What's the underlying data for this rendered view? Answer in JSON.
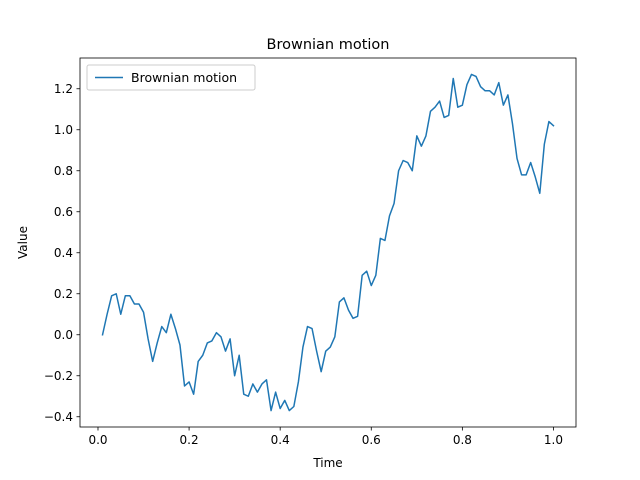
{
  "chart_data": {
    "type": "line",
    "title": "Brownian motion",
    "xlabel": "Time",
    "ylabel": "Value",
    "xlim": [
      -0.0395,
      1.0495
    ],
    "ylim": [
      -0.45,
      1.35
    ],
    "xticks": [
      0.0,
      0.2,
      0.4,
      0.6,
      0.8,
      1.0
    ],
    "xtick_labels": [
      "0.0",
      "0.2",
      "0.4",
      "0.6",
      "0.8",
      "1.0"
    ],
    "yticks": [
      -0.4,
      -0.2,
      0.0,
      0.2,
      0.4,
      0.6,
      0.8,
      1.0,
      1.2
    ],
    "ytick_labels": [
      "−0.4",
      "−0.2",
      "0.0",
      "0.2",
      "0.4",
      "0.6",
      "0.8",
      "1.0",
      "1.2"
    ],
    "grid": false,
    "legend_position": "upper-left",
    "colors": {
      "series": "#1f77b4"
    },
    "series": [
      {
        "name": "Brownian motion",
        "x": [
          0.01,
          0.02,
          0.03,
          0.04,
          0.05,
          0.06,
          0.07,
          0.08,
          0.09,
          0.1,
          0.11,
          0.12,
          0.13,
          0.14,
          0.15,
          0.16,
          0.17,
          0.18,
          0.19,
          0.2,
          0.21,
          0.22,
          0.23,
          0.24,
          0.25,
          0.26,
          0.27,
          0.28,
          0.29,
          0.3,
          0.31,
          0.32,
          0.33,
          0.34,
          0.35,
          0.36,
          0.37,
          0.38,
          0.39,
          0.4,
          0.41,
          0.42,
          0.43,
          0.44,
          0.45,
          0.46,
          0.47,
          0.48,
          0.49,
          0.5,
          0.51,
          0.52,
          0.53,
          0.54,
          0.55,
          0.56,
          0.57,
          0.58,
          0.59,
          0.6,
          0.61,
          0.62,
          0.63,
          0.64,
          0.65,
          0.66,
          0.67,
          0.68,
          0.69,
          0.7,
          0.71,
          0.72,
          0.73,
          0.74,
          0.75,
          0.76,
          0.77,
          0.78,
          0.79,
          0.8,
          0.81,
          0.82,
          0.83,
          0.84,
          0.85,
          0.86,
          0.87,
          0.88,
          0.89,
          0.9,
          0.91,
          0.92,
          0.93,
          0.94,
          0.95,
          0.96,
          0.97,
          0.98,
          0.99,
          1.0
        ],
        "y": [
          0.0,
          0.1,
          0.19,
          0.2,
          0.1,
          0.19,
          0.19,
          0.15,
          0.15,
          0.11,
          -0.02,
          -0.13,
          -0.04,
          0.04,
          0.01,
          0.1,
          0.03,
          -0.05,
          -0.25,
          -0.23,
          -0.29,
          -0.13,
          -0.1,
          -0.04,
          -0.03,
          0.01,
          -0.01,
          -0.08,
          -0.02,
          -0.2,
          -0.1,
          -0.29,
          -0.3,
          -0.24,
          -0.28,
          -0.24,
          -0.22,
          -0.37,
          -0.28,
          -0.36,
          -0.32,
          -0.37,
          -0.35,
          -0.23,
          -0.06,
          0.04,
          0.03,
          -0.08,
          -0.18,
          -0.08,
          -0.06,
          -0.01,
          0.16,
          0.18,
          0.12,
          0.08,
          0.09,
          0.29,
          0.31,
          0.24,
          0.29,
          0.47,
          0.46,
          0.58,
          0.64,
          0.8,
          0.85,
          0.84,
          0.8,
          0.97,
          0.92,
          0.97,
          1.09,
          1.11,
          1.14,
          1.06,
          1.07,
          1.25,
          1.11,
          1.12,
          1.22,
          1.27,
          1.26,
          1.21,
          1.19,
          1.19,
          1.17,
          1.23,
          1.12,
          1.17,
          1.03,
          0.86,
          0.78,
          0.78,
          0.84,
          0.77,
          0.69,
          0.93,
          1.04,
          1.02
        ]
      }
    ]
  }
}
